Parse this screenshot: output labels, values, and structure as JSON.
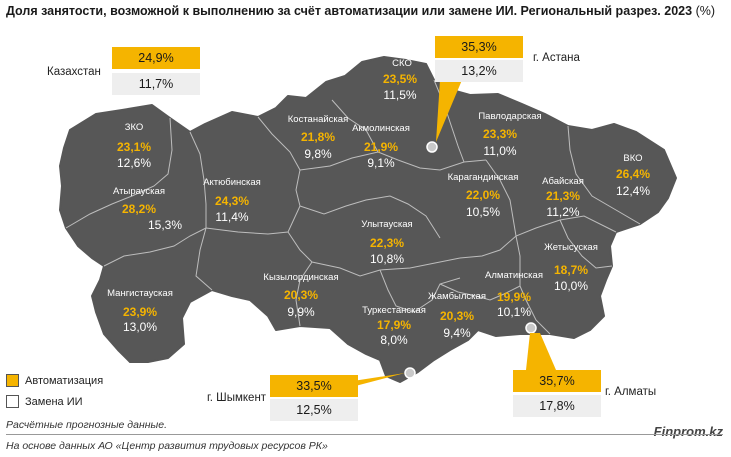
{
  "title": "Доля занятости, возможной к выполнению за счёт автоматизации или замене ИИ. Региональный разрез. 2023",
  "title_unit": "(%)",
  "colors": {
    "map": "#575757",
    "border": "#bdbdbd",
    "auto": "#f5b400",
    "repl": "#eeeeee"
  },
  "national": {
    "name": "Казахстан",
    "auto": "24,9%",
    "repl": "11,7%"
  },
  "cities": [
    {
      "name": "г. Астана",
      "auto": "35,3%",
      "repl": "13,2%"
    },
    {
      "name": "г. Шымкент",
      "auto": "33,5%",
      "repl": "12,5%"
    },
    {
      "name": "г. Алматы",
      "auto": "35,7%",
      "repl": "17,8%"
    }
  ],
  "regions": [
    {
      "name": "СКО",
      "auto": "23,5%",
      "repl": "11,5%"
    },
    {
      "name": "Костанайская",
      "auto": "21,8%",
      "repl": "9,8%"
    },
    {
      "name": "Акмолинская",
      "auto": "21,9%",
      "repl": "9,1%"
    },
    {
      "name": "Павлодарская",
      "auto": "23,3%",
      "repl": "11,0%"
    },
    {
      "name": "ЗКО",
      "auto": "23,1%",
      "repl": "12,6%"
    },
    {
      "name": "ВКО",
      "auto": "26,4%",
      "repl": "12,4%"
    },
    {
      "name": "Атырауская",
      "auto": "28,2%",
      "repl": "15,3%"
    },
    {
      "name": "Актюбинская",
      "auto": "24,3%",
      "repl": "11,4%"
    },
    {
      "name": "Карагандинская",
      "auto": "22,0%",
      "repl": "10,5%"
    },
    {
      "name": "Абайская",
      "auto": "21,3%",
      "repl": "11,2%"
    },
    {
      "name": "Улытауская",
      "auto": "22,3%",
      "repl": "10,8%"
    },
    {
      "name": "Жетысуская",
      "auto": "18,7%",
      "repl": "10,0%"
    },
    {
      "name": "Кызылординская",
      "auto": "20,3%",
      "repl": "9,9%"
    },
    {
      "name": "Алматинская",
      "auto": "19,9%",
      "repl": "10,1%"
    },
    {
      "name": "Мангистауская",
      "auto": "23,9%",
      "repl": "13,0%"
    },
    {
      "name": "Туркестанская",
      "auto": "17,9%",
      "repl": "8,0%"
    },
    {
      "name": "Жамбылская",
      "auto": "20,3%",
      "repl": "9,4%"
    }
  ],
  "legend": {
    "auto_label": "Автоматизация",
    "repl_label": "Замена ИИ"
  },
  "note": "Расчётные прогнозные данные.",
  "source": "На основе данных АО «Центр развития трудовых ресурсов РК»",
  "brand": "Finprom.kz"
}
